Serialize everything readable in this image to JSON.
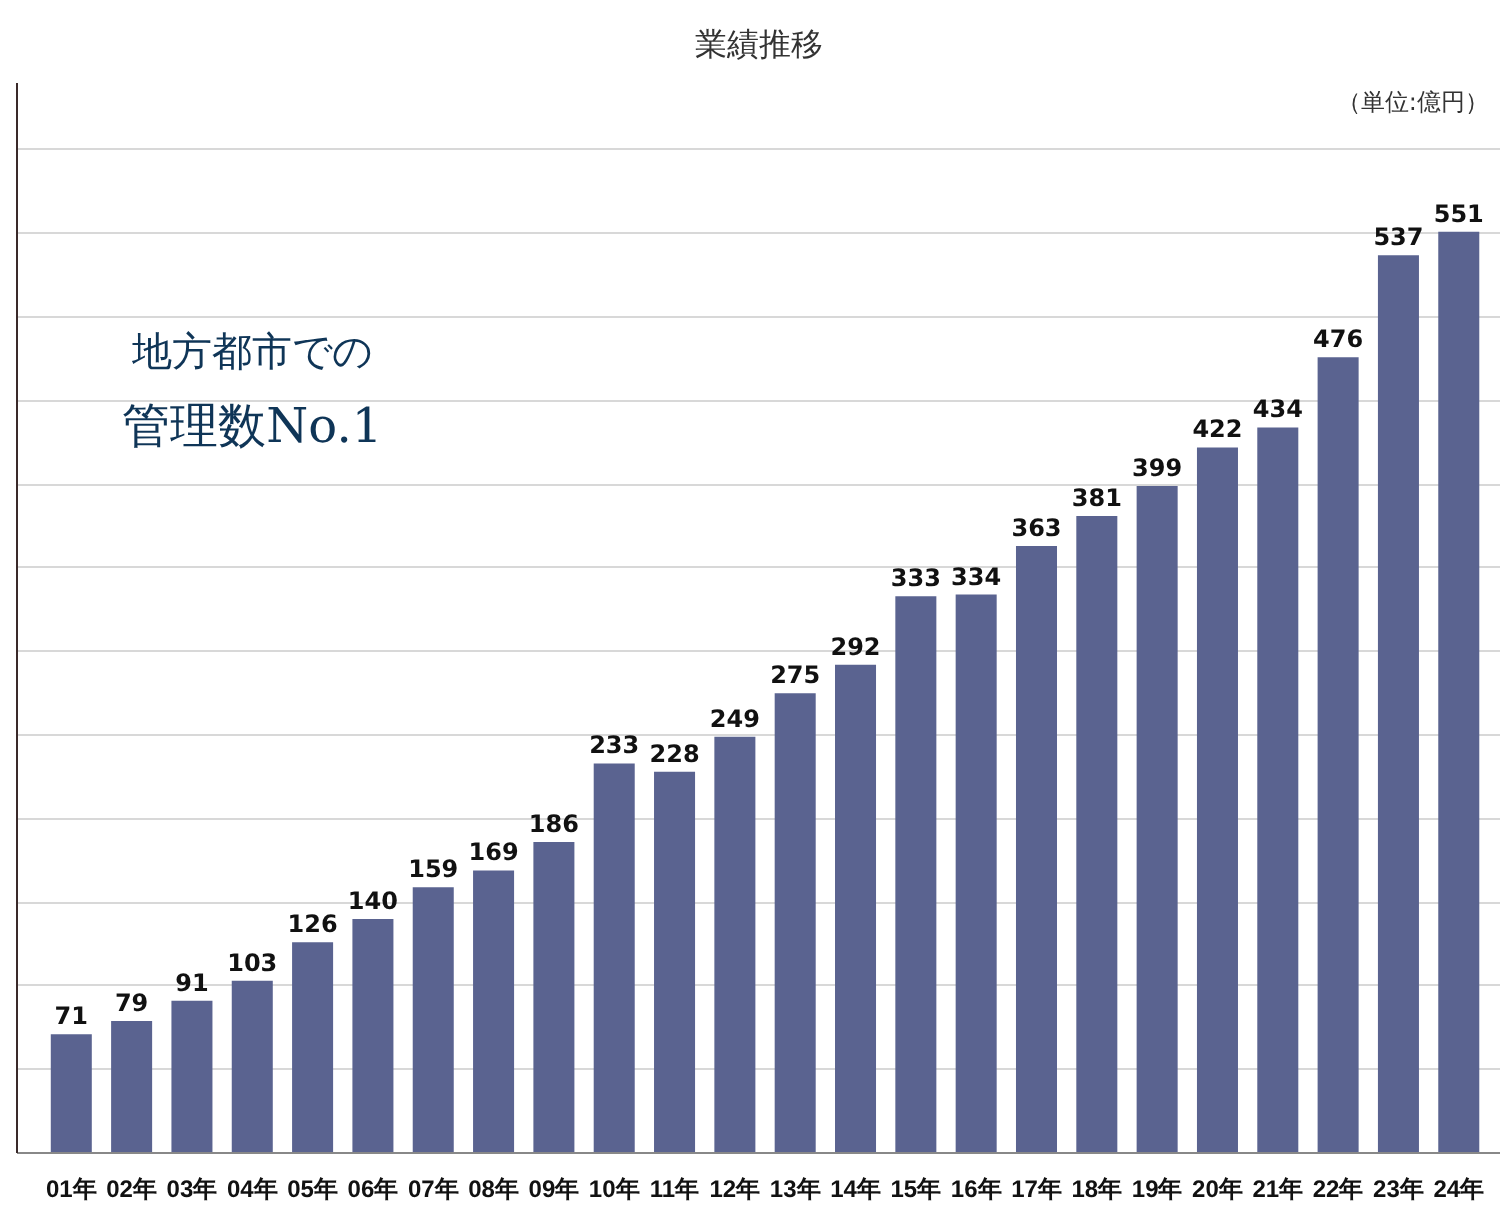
{
  "chart_data": {
    "type": "bar",
    "title": "業績推移",
    "categories": [
      "01年",
      "02年",
      "03年",
      "04年",
      "05年",
      "06年",
      "07年",
      "08年",
      "09年",
      "10年",
      "11年",
      "12年",
      "13年",
      "14年",
      "15年",
      "16年",
      "17年",
      "18年",
      "19年",
      "20年",
      "21年",
      "22年",
      "23年",
      "24年"
    ],
    "values": [
      71,
      79,
      91,
      103,
      126,
      140,
      159,
      169,
      186,
      233,
      228,
      249,
      275,
      292,
      333,
      334,
      363,
      381,
      399,
      422,
      434,
      476,
      537,
      551
    ],
    "color": "#5a6390",
    "ylim": [
      0,
      640
    ],
    "yticks": [
      {
        "value": 50,
        "label": null
      },
      {
        "value": 100,
        "label": null
      },
      {
        "value": 150,
        "label": null
      },
      {
        "value": 200,
        "label": null
      },
      {
        "value": 250,
        "label": null
      },
      {
        "value": 300,
        "label": null
      },
      {
        "value": 350,
        "label": null
      },
      {
        "value": 400,
        "label": null
      },
      {
        "value": 450,
        "label": null
      },
      {
        "value": 500,
        "label": null
      },
      {
        "value": 550,
        "label": null
      },
      {
        "value": 600,
        "label": null
      }
    ],
    "tick_labels": "x",
    "grid": "y",
    "data_labels": true,
    "annotations": [
      "（単位:億円）",
      "地方都市での",
      "管理数No.1"
    ]
  }
}
